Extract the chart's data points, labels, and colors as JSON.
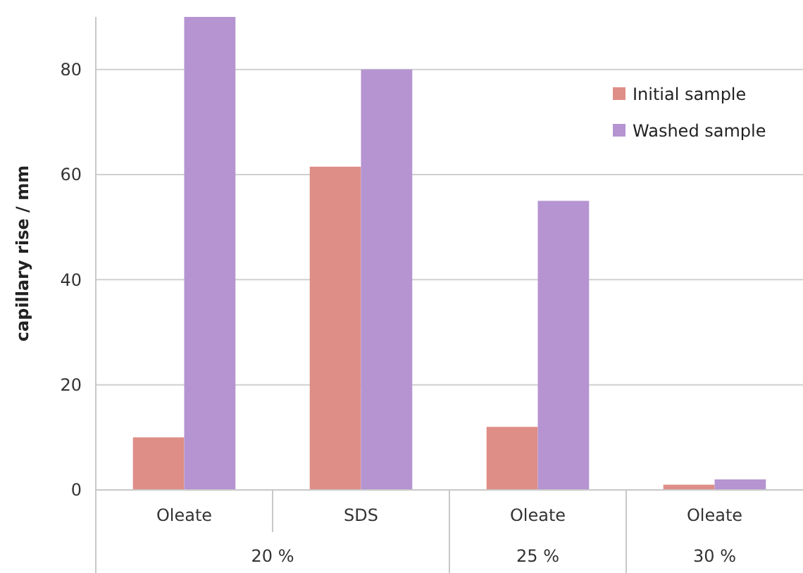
{
  "chart_data": {
    "type": "bar",
    "ylabel": "capillary rise / mm",
    "categories": [
      "Oleate",
      "SDS",
      "Oleate",
      "Oleate"
    ],
    "series": [
      {
        "name": "Initial sample",
        "color": "#de8e87",
        "values": [
          10,
          61.5,
          12,
          1
        ]
      },
      {
        "name": "Washed sample",
        "color": "#b594d1",
        "values": [
          90,
          80,
          55,
          2
        ]
      }
    ],
    "ylim": [
      0,
      90
    ],
    "yticks": [
      0,
      20,
      40,
      60,
      80
    ],
    "grid": "y",
    "legend": "top right",
    "annotations": [
      "20 %",
      "25 %",
      "30 %"
    ]
  }
}
